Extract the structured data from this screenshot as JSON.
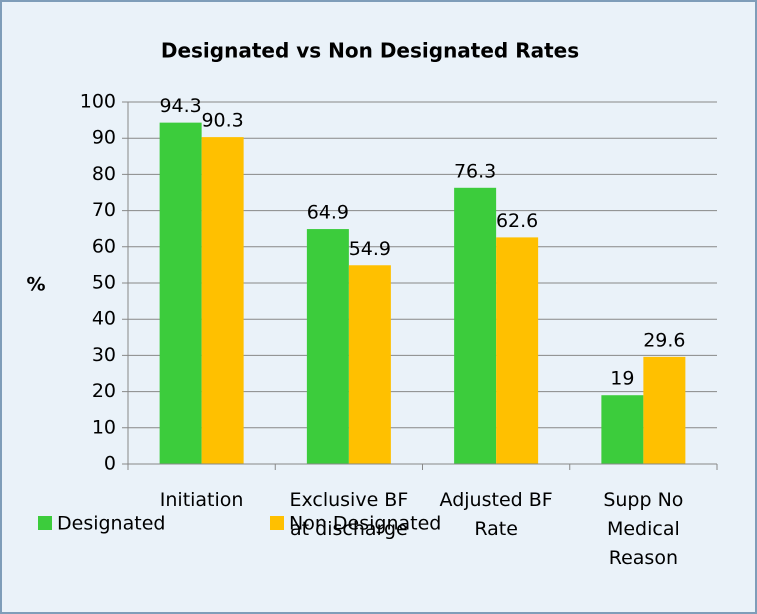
{
  "chart_data": {
    "type": "bar",
    "title": "Designated vs Non Designated Rates",
    "ylabel": "%",
    "categories": [
      "Initiation",
      "Exclusive BF at discharge",
      "Adjusted BF Rate",
      "Supp No Medical Reason"
    ],
    "series": [
      {
        "name": "Designated",
        "color": "#3ccc3c",
        "values": [
          94.3,
          64.9,
          76.3,
          19
        ]
      },
      {
        "name": "Non Designated",
        "color": "#ffc000",
        "values": [
          90.3,
          54.9,
          62.6,
          29.6
        ]
      }
    ],
    "ylim": [
      0,
      100
    ],
    "yticks": [
      0,
      10,
      20,
      30,
      40,
      50,
      60,
      70,
      80,
      90,
      100
    ],
    "grid": true,
    "legend": "bottom"
  }
}
